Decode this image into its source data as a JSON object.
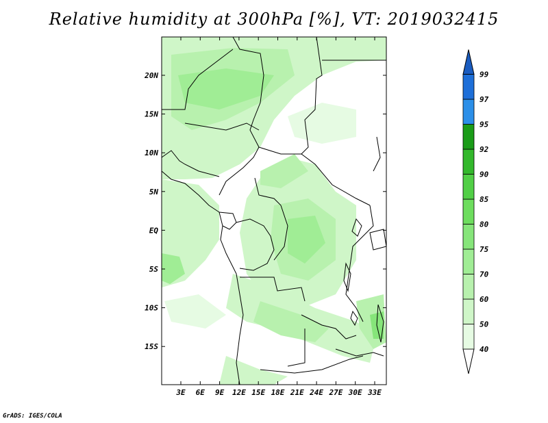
{
  "title": "Relative humidity at 300hPa [%], VT: 2019032415",
  "credit": "GrADS: IGES/COLA",
  "map": {
    "lat_ticks": [
      "20N",
      "15N",
      "10N",
      "5N",
      "EQ",
      "5S",
      "10S",
      "15S"
    ],
    "lon_ticks": [
      "3E",
      "6E",
      "9E",
      "12E",
      "15E",
      "18E",
      "21E",
      "24E",
      "27E",
      "30E",
      "33E"
    ]
  },
  "colorbar": {
    "labels": [
      "40",
      "50",
      "60",
      "70",
      "75",
      "80",
      "85",
      "90",
      "92",
      "95",
      "97",
      "99"
    ],
    "colors": [
      "#ffffff",
      "#e6fbe3",
      "#cff6c8",
      "#b8f1ae",
      "#a0ed95",
      "#86e57a",
      "#6ddd5e",
      "#51cf46",
      "#33b82c",
      "#1a9c18",
      "#2c8fe8",
      "#1e6fd8",
      "#1a5cc0"
    ]
  }
}
